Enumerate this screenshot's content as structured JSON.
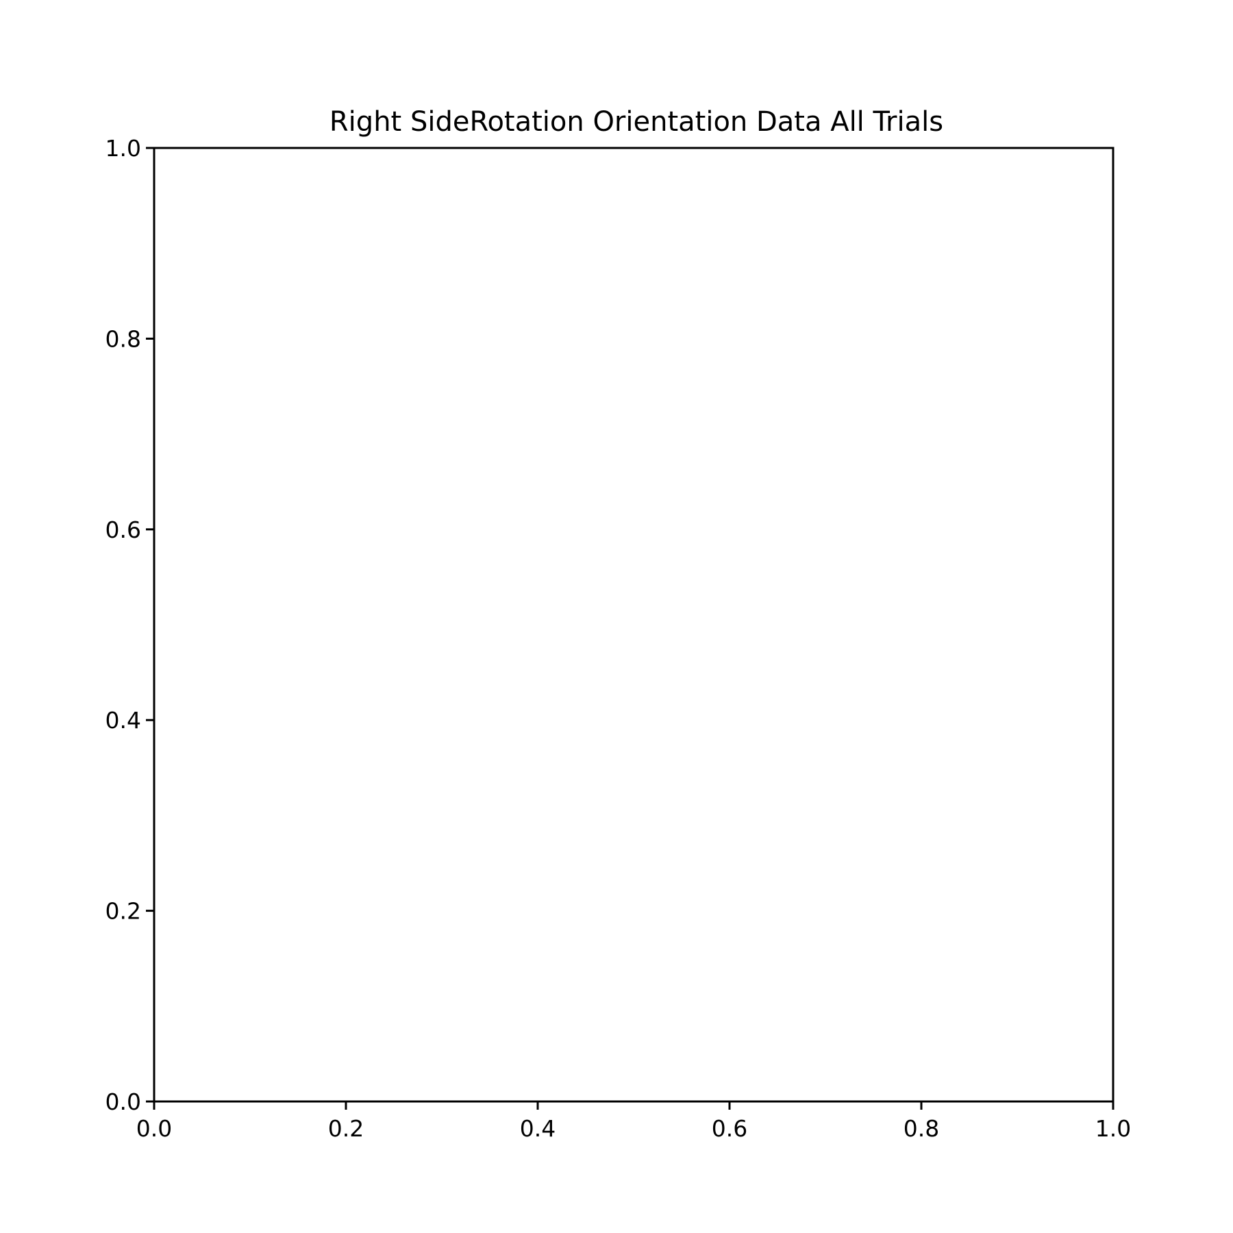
{
  "chart_data": {
    "type": "line",
    "title": "Right SideRotation Orientation Data All Trials",
    "xlabel": "",
    "ylabel": "",
    "xlim": [
      0.0,
      1.0
    ],
    "ylim": [
      0.0,
      1.0
    ],
    "x_ticks": [
      "0.0",
      "0.2",
      "0.4",
      "0.6",
      "0.8",
      "1.0"
    ],
    "y_ticks": [
      "0.0",
      "0.2",
      "0.4",
      "0.6",
      "0.8",
      "1.0"
    ],
    "grid": false,
    "legend": "none",
    "series": []
  }
}
